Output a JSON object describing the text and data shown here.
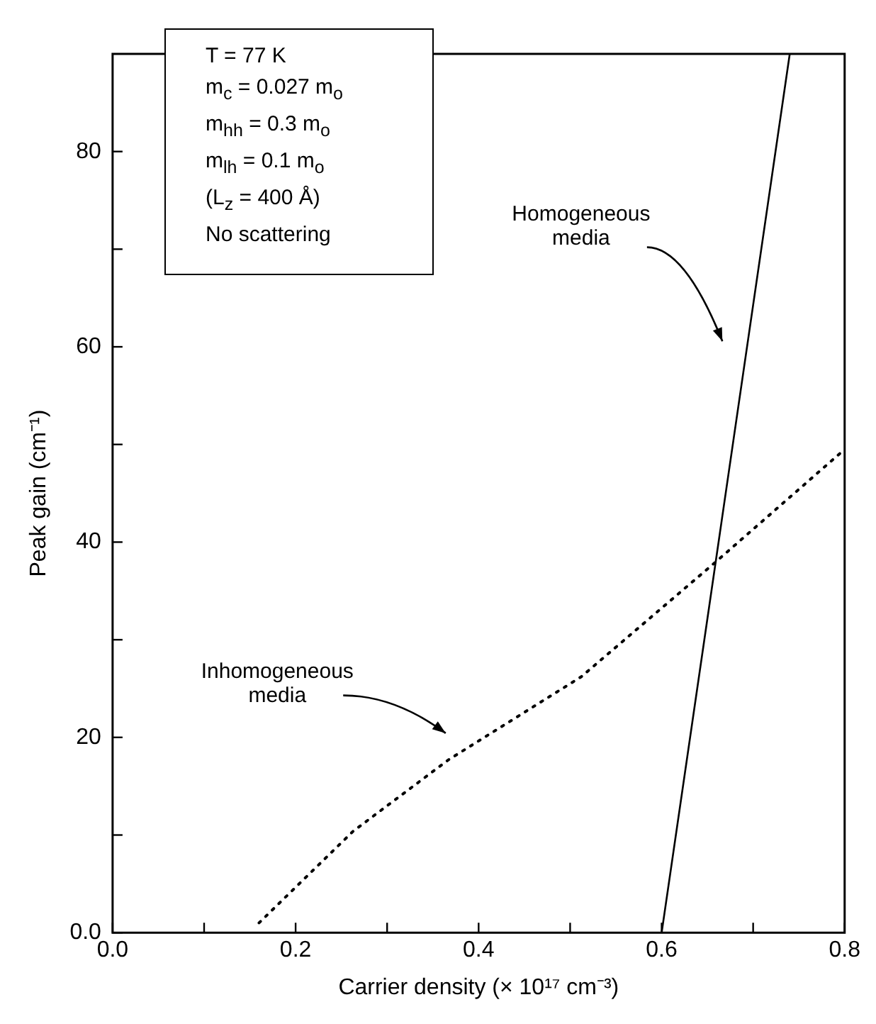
{
  "chart_data": {
    "type": "line",
    "xlabel": "Carrier density (× 10¹⁷ cm⁻³)",
    "ylabel": "Peak gain (cm⁻¹)",
    "xlim": [
      0,
      0.8
    ],
    "ylim": [
      0,
      90
    ],
    "xticks": [
      {
        "value": 0,
        "label": "0.0"
      },
      {
        "value": 0.1,
        "label": null
      },
      0.2,
      {
        "value": 0.3,
        "label": null
      },
      0.4,
      {
        "value": 0.5,
        "label": null
      },
      0.6,
      {
        "value": 0.7,
        "label": null
      },
      0.8
    ],
    "yticks": [
      {
        "value": 0,
        "label": "0.0"
      },
      {
        "value": 10,
        "label": null
      },
      20,
      {
        "value": 30,
        "label": null
      },
      40,
      {
        "value": 50,
        "label": null
      },
      60,
      {
        "value": 70,
        "label": null
      },
      80
    ],
    "grid": false,
    "legend": false,
    "marker": "none",
    "series": [
      {
        "color": "#000000",
        "line_style": "solid",
        "x": [
          0.6,
          0.74
        ],
        "values": [
          0,
          90
        ]
      },
      {
        "color": "#000000",
        "line_style": "dotted",
        "x": [
          0.16,
          0.263,
          0.367,
          0.512,
          0.657,
          0.8
        ],
        "values": [
          1,
          10.4,
          17.7,
          26.2,
          37.8,
          49.5
        ]
      }
    ],
    "annotations": [
      "T = 77 K",
      "m$_{c}$ = 0.027 m$_{o}$",
      "m$_{hh}$ = 0.3 m$_{o}$",
      "m$_{lh}$ = 0.1 m$_{o}$",
      "(L$_{z}$ = 400 Å)",
      "No scattering",
      "Homogeneous media",
      "Inhomogeneous media"
    ]
  }
}
